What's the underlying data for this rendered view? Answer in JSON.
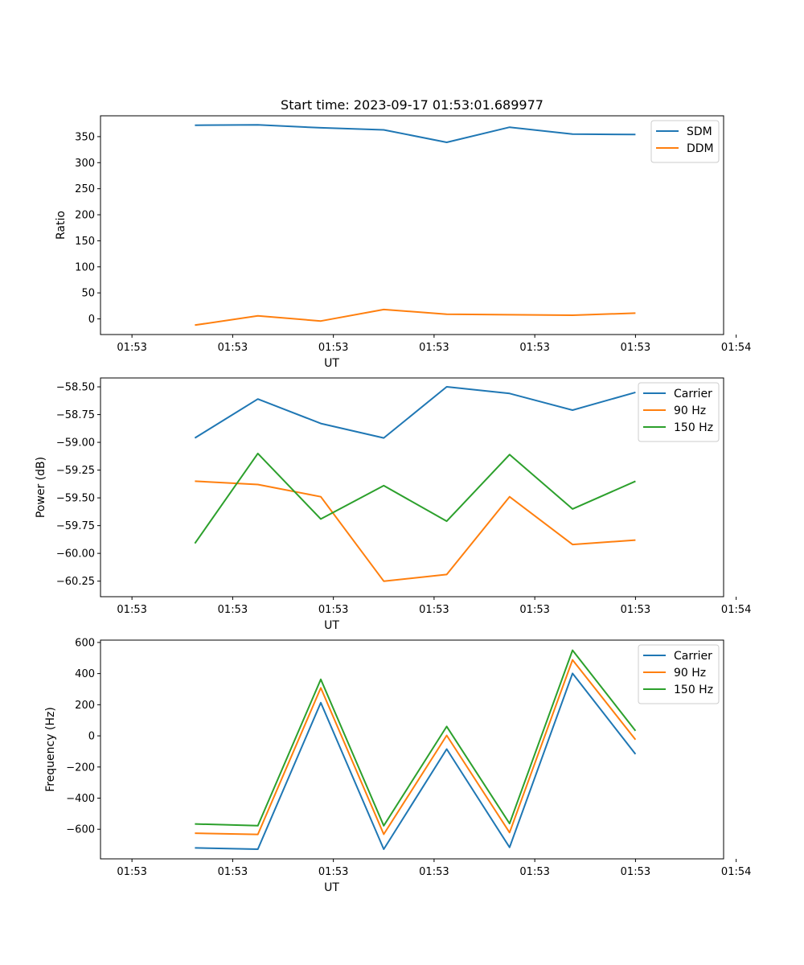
{
  "chart_data": [
    {
      "type": "line",
      "title": "Start time: 2023-09-17 01:53:01.689977",
      "xlabel": "UT",
      "ylabel": "Ratio",
      "xlim": [
        -0.5,
        9.4
      ],
      "ylim": [
        -30,
        390
      ],
      "x": [
        1,
        2,
        3,
        4,
        5,
        6,
        7,
        8
      ],
      "x_ticks": [
        0,
        1.6,
        3.2,
        4.8,
        6.4,
        8.0,
        9.6
      ],
      "x_tick_labels": [
        "01:53",
        "01:53",
        "01:53",
        "01:53",
        "01:53",
        "01:53",
        "01:54"
      ],
      "y_ticks": [
        0,
        50,
        100,
        150,
        200,
        250,
        300,
        350
      ],
      "y_tick_labels": [
        "0",
        "50",
        "100",
        "150",
        "200",
        "250",
        "300",
        "350"
      ],
      "legend_position": "top-right",
      "series": [
        {
          "name": "SDM",
          "color": "#1f77b4",
          "values": [
            372,
            372.5,
            367,
            363,
            339,
            368,
            355,
            354
          ]
        },
        {
          "name": "DDM",
          "color": "#ff7f0e",
          "values": [
            -12,
            6,
            -4,
            18,
            9,
            8,
            7,
            11
          ]
        }
      ]
    },
    {
      "type": "line",
      "title": "",
      "xlabel": "UT",
      "ylabel": "Power (dB)",
      "xlim": [
        -0.5,
        9.4
      ],
      "ylim": [
        -60.39,
        -58.42
      ],
      "x": [
        1,
        2,
        3,
        4,
        5,
        6,
        7,
        8
      ],
      "x_ticks": [
        0,
        1.6,
        3.2,
        4.8,
        6.4,
        8.0,
        9.6
      ],
      "x_tick_labels": [
        "01:53",
        "01:53",
        "01:53",
        "01:53",
        "01:53",
        "01:53",
        "01:54"
      ],
      "y_ticks": [
        -60.25,
        -60.0,
        -59.75,
        -59.5,
        -59.25,
        -59.0,
        -58.75,
        -58.5
      ],
      "y_tick_labels": [
        "−60.25",
        "−60.00",
        "−59.75",
        "−59.50",
        "−59.25",
        "−59.00",
        "−58.75",
        "−58.50"
      ],
      "legend_position": "top-right",
      "series": [
        {
          "name": "Carrier",
          "color": "#1f77b4",
          "values": [
            -58.96,
            -58.61,
            -58.83,
            -58.96,
            -58.5,
            -58.56,
            -58.71,
            -58.55
          ]
        },
        {
          "name": "90 Hz",
          "color": "#ff7f0e",
          "values": [
            -59.35,
            -59.38,
            -59.49,
            -60.25,
            -60.19,
            -59.49,
            -59.92,
            -59.88
          ]
        },
        {
          "name": "150 Hz",
          "color": "#2ca02c",
          "values": [
            -59.91,
            -59.1,
            -59.69,
            -59.39,
            -59.71,
            -59.11,
            -59.6,
            -59.35
          ]
        }
      ]
    },
    {
      "type": "line",
      "title": "",
      "xlabel": "UT",
      "ylabel": "Frequency (Hz)",
      "xlim": [
        -0.5,
        9.4
      ],
      "ylim": [
        -790,
        615
      ],
      "x": [
        1,
        2,
        3,
        4,
        5,
        6,
        7,
        8
      ],
      "x_ticks": [
        0,
        1.6,
        3.2,
        4.8,
        6.4,
        8.0,
        9.6
      ],
      "x_tick_labels": [
        "01:53",
        "01:53",
        "01:53",
        "01:53",
        "01:53",
        "01:53",
        "01:54"
      ],
      "y_ticks": [
        -600,
        -400,
        -200,
        0,
        200,
        400,
        600
      ],
      "y_tick_labels": [
        "−600",
        "−400",
        "−200",
        "0",
        "200",
        "400",
        "600"
      ],
      "legend_position": "top-right",
      "series": [
        {
          "name": "Carrier",
          "color": "#1f77b4",
          "values": [
            -720,
            -728,
            213,
            -728,
            -85,
            -716,
            401,
            -117
          ]
        },
        {
          "name": "90 Hz",
          "color": "#ff7f0e",
          "values": [
            -625,
            -633,
            308,
            -632,
            3,
            -621,
            488,
            -24
          ]
        },
        {
          "name": "150 Hz",
          "color": "#2ca02c",
          "values": [
            -566,
            -577,
            363,
            -577,
            60,
            -563,
            550,
            33
          ]
        }
      ]
    }
  ]
}
